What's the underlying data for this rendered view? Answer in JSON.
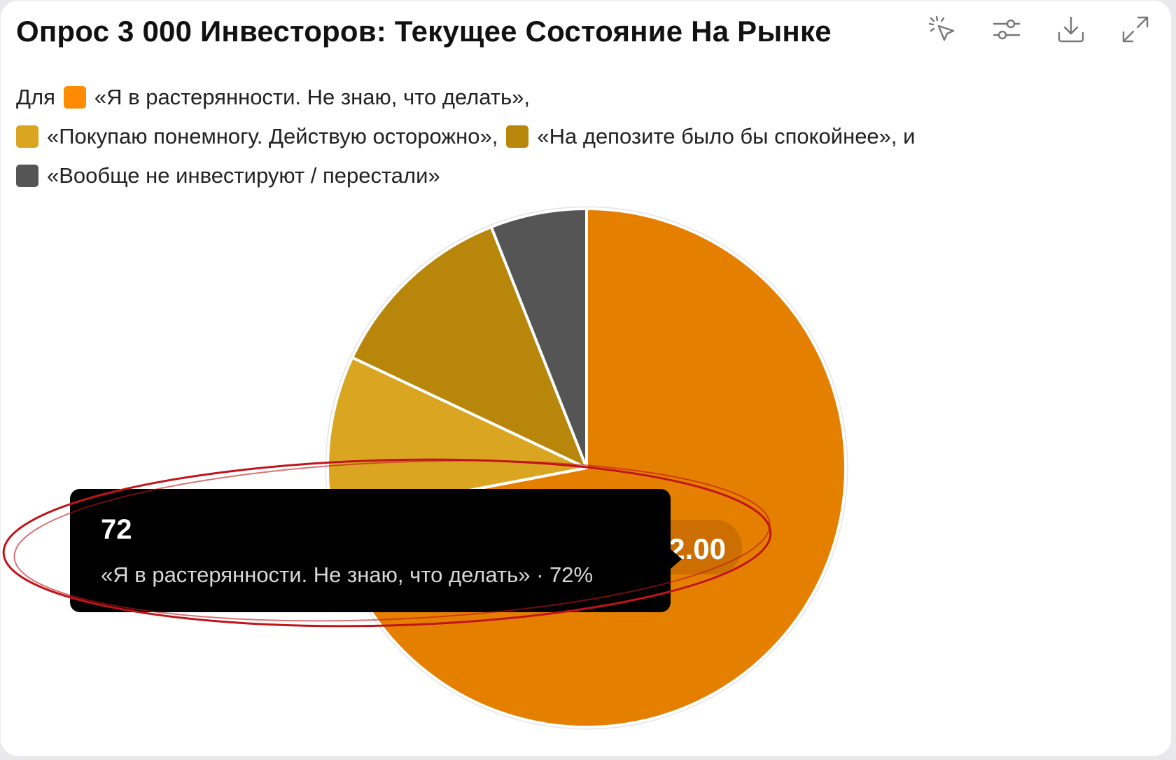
{
  "title": "Опрос 3 000 Инвесторов: Текущее Состояние На Рынке",
  "toolbar": {
    "icons": [
      "click-pointer-icon",
      "sliders-icon",
      "download-icon",
      "expand-icon"
    ]
  },
  "legend": {
    "prefix": "Для",
    "items": [
      {
        "label": "«Я в растерянности. Не знаю, что делать»,",
        "color": "#ff8c00"
      },
      {
        "label": "«Покупаю понемногу. Действую осторожно»,",
        "color": "#daa520"
      },
      {
        "label": "«На депозите было бы спокойнее», и",
        "color": "#b8860b"
      },
      {
        "label": "«Вообще не инвестируют / перестали»",
        "color": "#555555"
      }
    ]
  },
  "chart_data": {
    "type": "pie",
    "title": "Опрос 3 000 Инвесторов: Текущее Состояние На Рынке",
    "categories": [
      "«Я в растерянности. Не знаю, что делать»",
      "«Покупаю понемногу. Действую осторожно»",
      "«На депозите было бы спокойнее»",
      "«Вообще не инвестируют / перестали»"
    ],
    "values": [
      72,
      10,
      12,
      6
    ],
    "colors": [
      "#e57f00",
      "#daa520",
      "#b8860b",
      "#555555"
    ],
    "data_label_visible": "2.00"
  },
  "tooltip": {
    "value": "72",
    "label": "«Я в растерянности. Не знаю, что делать» · 72%"
  },
  "annotation": {
    "color": "#c0141b"
  }
}
